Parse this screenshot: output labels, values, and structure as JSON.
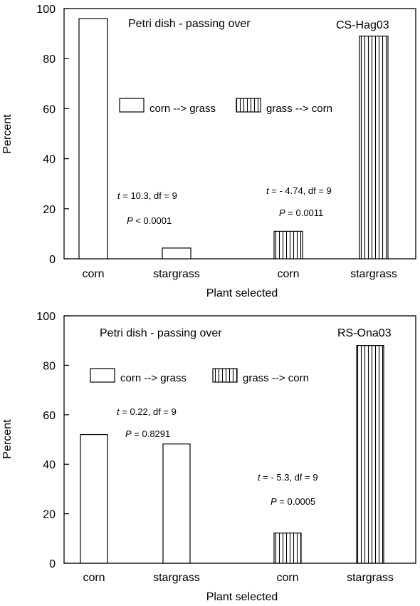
{
  "chart_data": [
    {
      "type": "bar",
      "title": "Petri dish - passing over",
      "site": "CS-Hag03",
      "xlabel": "Plant selected",
      "ylabel": "Percent",
      "ylim": [
        0,
        100
      ],
      "yticks": [
        0,
        20,
        40,
        60,
        80,
        100
      ],
      "categories": [
        "corn",
        "stargrass",
        "corn",
        "stargrass"
      ],
      "series": [
        {
          "name": "corn --> grass",
          "pattern": "open",
          "bars": [
            {
              "category_index": 0,
              "value": 96
            },
            {
              "category_index": 1,
              "value": 4.3
            }
          ]
        },
        {
          "name": "grass --> corn",
          "pattern": "vertical-hatch",
          "bars": [
            {
              "category_index": 2,
              "value": 11
            },
            {
              "category_index": 3,
              "value": 89
            }
          ]
        }
      ],
      "stats": [
        {
          "t_label": "t",
          "t_rest": " = 10.3, df = 9",
          "p_label": "P",
          "p_rest": " < 0.0001"
        },
        {
          "t_label": "t",
          "t_rest": " = - 4.74, df = 9",
          "p_label": "P",
          "p_rest": " = 0.0011"
        }
      ],
      "legend_position": "middle-left",
      "grid": false
    },
    {
      "type": "bar",
      "title": "Petri dish - passing over",
      "site": "RS-Ona03",
      "xlabel": "Plant selected",
      "ylabel": "Percent",
      "ylim": [
        0,
        100
      ],
      "yticks": [
        0,
        20,
        40,
        60,
        80,
        100
      ],
      "categories": [
        "corn",
        "stargrass",
        "corn",
        "stargrass"
      ],
      "series": [
        {
          "name": "corn --> grass",
          "pattern": "open",
          "bars": [
            {
              "category_index": 0,
              "value": 52
            },
            {
              "category_index": 1,
              "value": 48.2
            }
          ]
        },
        {
          "name": "grass --> corn",
          "pattern": "vertical-hatch",
          "bars": [
            {
              "category_index": 2,
              "value": 12.2
            },
            {
              "category_index": 3,
              "value": 88
            }
          ]
        }
      ],
      "stats": [
        {
          "t_label": "t",
          "t_rest": " = 0.22, df = 9",
          "p_label": "P",
          "p_rest": " = 0.8291"
        },
        {
          "t_label": "t",
          "t_rest": " = - 5.3, df = 9",
          "p_label": "P",
          "p_rest": " = 0.0005"
        }
      ],
      "legend_position": "top-left",
      "grid": false
    }
  ]
}
